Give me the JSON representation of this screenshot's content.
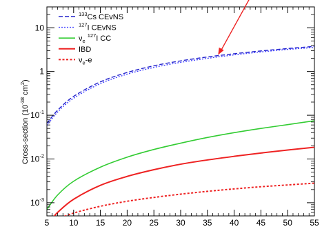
{
  "chart_data": {
    "type": "line",
    "title": "",
    "xlabel": "",
    "ylabel": "Cross-section (10$^{-38}$ cm$^{2}$)",
    "ylabel_parts": {
      "pre": "Cross-section (10",
      "exp": "-38",
      "mid": " cm",
      "exp2": "2",
      "post": ")"
    },
    "xlim": [
      5,
      55
    ],
    "ylim": [
      0.0005,
      30
    ],
    "yscale": "log",
    "grid": false,
    "legend_position": "top-left",
    "x_ticks": [
      5,
      10,
      15,
      20,
      25,
      30,
      35,
      40,
      45,
      50,
      55
    ],
    "x_tick_labels": [
      "5",
      "10",
      "15",
      "20",
      "25",
      "30",
      "35",
      "40",
      "45",
      "50",
      "55"
    ],
    "y_ticks": [
      {
        "value": 0.001,
        "base": "10",
        "exp": "-3"
      },
      {
        "value": 0.01,
        "base": "10",
        "exp": "-2"
      },
      {
        "value": 0.1,
        "base": "10",
        "exp": "-1"
      },
      {
        "value": 1,
        "base": "1",
        "exp": ""
      },
      {
        "value": 10,
        "base": "10",
        "exp": ""
      }
    ],
    "series": [
      {
        "name": "133Cs CEvNS",
        "legend": {
          "pre": "",
          "sup": "133",
          "post": "Cs CEvNS"
        },
        "color": "#2222cc",
        "dash": "6,3",
        "width": 1.4,
        "x": [
          5,
          7,
          10,
          15,
          20,
          25,
          30,
          35,
          40,
          45,
          50,
          55
        ],
        "y": [
          0.065,
          0.13,
          0.27,
          0.58,
          0.95,
          1.35,
          1.75,
          2.15,
          2.55,
          2.95,
          3.35,
          3.75
        ]
      },
      {
        "name": "127I CEvNS",
        "legend": {
          "pre": "",
          "sup": "127",
          "post": "I CEvNS"
        },
        "color": "#4444ff",
        "dash": "2,2",
        "width": 1.4,
        "x": [
          5,
          7,
          10,
          15,
          20,
          25,
          30,
          35,
          40,
          45,
          50,
          55
        ],
        "y": [
          0.058,
          0.118,
          0.245,
          0.53,
          0.87,
          1.24,
          1.62,
          2.0,
          2.4,
          2.8,
          3.2,
          3.55
        ]
      },
      {
        "name": "νe 127I CC",
        "legend": {
          "pre": "ν",
          "sub": "e",
          "sup": "127",
          "post": "I CC"
        },
        "color": "#33cc33",
        "dash": "",
        "width": 1.6,
        "x": [
          5,
          7,
          10,
          15,
          20,
          25,
          30,
          35,
          40,
          45,
          50,
          55
        ],
        "y": [
          0.0007,
          0.0015,
          0.0031,
          0.0065,
          0.011,
          0.0165,
          0.023,
          0.031,
          0.04,
          0.05,
          0.061,
          0.075
        ]
      },
      {
        "name": "IBD",
        "legend": {
          "pre": "",
          "sup": "",
          "post": "IBD"
        },
        "color": "#ee2222",
        "dash": "",
        "width": 2.0,
        "x": [
          6,
          7,
          10,
          15,
          20,
          25,
          30,
          35,
          40,
          45,
          50,
          55
        ],
        "y": [
          0.00043,
          0.0006,
          0.0012,
          0.0025,
          0.004,
          0.0057,
          0.0076,
          0.0095,
          0.0115,
          0.0137,
          0.016,
          0.0185
        ]
      },
      {
        "name": "νe-e",
        "legend": {
          "pre": "ν",
          "sub": "e",
          "sup": "",
          "post": "-e"
        },
        "color": "#ee2222",
        "dash": "3,2.5",
        "width": 2.0,
        "x": [
          7,
          10,
          15,
          20,
          25,
          30,
          35,
          40,
          45,
          50,
          55
        ],
        "y": [
          0.00042,
          0.00058,
          0.00083,
          0.00108,
          0.00132,
          0.00157,
          0.00182,
          0.00207,
          0.00232,
          0.00255,
          0.0028
        ]
      }
    ],
    "annotation_arrow": {
      "color": "#ee2222",
      "tip_x": 37,
      "tip_y": 2.4
    }
  }
}
